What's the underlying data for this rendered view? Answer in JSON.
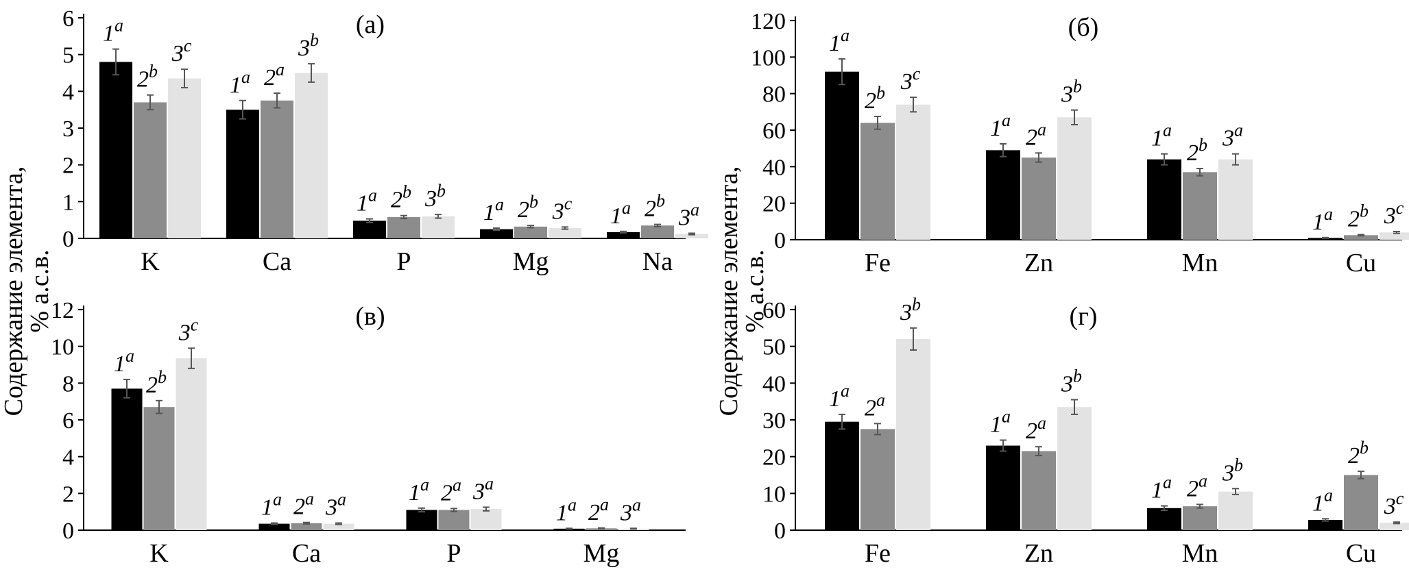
{
  "y_axis_label_line1": "Содержание элемента,",
  "y_axis_label_line2": "% а.с.в.",
  "colors": {
    "series1": "#000000",
    "series2": "#8c8c8c",
    "series3": "#e3e3e3",
    "axis": "#000000",
    "errorbar": "#555555"
  },
  "chart_data": [
    {
      "type": "bar",
      "panel_label": "(а)",
      "categories": [
        "K",
        "Ca",
        "P",
        "Mg",
        "Na"
      ],
      "ylim": [
        0,
        6
      ],
      "yticks": [
        0,
        1,
        2,
        3,
        4,
        5,
        6
      ],
      "series": [
        {
          "values": [
            4.8,
            3.5,
            0.48,
            0.25,
            0.17
          ],
          "errors": [
            0.35,
            0.25,
            0.05,
            0.03,
            0.02
          ],
          "labels": [
            "1",
            "1",
            "1",
            "1",
            "1"
          ],
          "letters": [
            "a",
            "a",
            "a",
            "a",
            "a"
          ]
        },
        {
          "values": [
            3.7,
            3.75,
            0.58,
            0.32,
            0.35
          ],
          "errors": [
            0.2,
            0.2,
            0.04,
            0.03,
            0.03
          ],
          "labels": [
            "2",
            "2",
            "2",
            "2",
            "2"
          ],
          "letters": [
            "b",
            "a",
            "b",
            "b",
            "b"
          ]
        },
        {
          "values": [
            4.35,
            4.5,
            0.6,
            0.28,
            0.12
          ],
          "errors": [
            0.25,
            0.25,
            0.05,
            0.03,
            0.02
          ],
          "labels": [
            "3",
            "3",
            "3",
            "3",
            "3"
          ],
          "letters": [
            "c",
            "b",
            "b",
            "c",
            "a"
          ]
        }
      ]
    },
    {
      "type": "bar",
      "panel_label": "(б)",
      "categories": [
        "Fe",
        "Zn",
        "Mn",
        "Cu"
      ],
      "ylim": [
        0,
        120
      ],
      "yticks": [
        0,
        20,
        40,
        60,
        80,
        100,
        120
      ],
      "series": [
        {
          "values": [
            92,
            49,
            44,
            1
          ],
          "errors": [
            7,
            3.5,
            3,
            0.2
          ],
          "labels": [
            "1",
            "1",
            "1",
            "1"
          ],
          "letters": [
            "a",
            "a",
            "a",
            "a"
          ]
        },
        {
          "values": [
            64,
            45,
            37,
            2.5
          ],
          "errors": [
            3.5,
            2.5,
            2,
            0.3
          ],
          "labels": [
            "2",
            "2",
            "2",
            "2"
          ],
          "letters": [
            "b",
            "a",
            "b",
            "b"
          ]
        },
        {
          "values": [
            74,
            67,
            44,
            4
          ],
          "errors": [
            4,
            4,
            3,
            0.5
          ],
          "labels": [
            "3",
            "3",
            "3",
            "3"
          ],
          "letters": [
            "c",
            "b",
            "a",
            "c"
          ]
        }
      ]
    },
    {
      "type": "bar",
      "panel_label": "(в)",
      "categories": [
        "K",
        "Ca",
        "P",
        "Mg"
      ],
      "ylim": [
        0,
        12
      ],
      "yticks": [
        0,
        2,
        4,
        6,
        8,
        10,
        12
      ],
      "series": [
        {
          "values": [
            7.7,
            0.35,
            1.1,
            0.08
          ],
          "errors": [
            0.5,
            0.04,
            0.1,
            0.02
          ],
          "labels": [
            "1",
            "1",
            "1",
            "1"
          ],
          "letters": [
            "a",
            "a",
            "a",
            "a"
          ]
        },
        {
          "values": [
            6.7,
            0.38,
            1.1,
            0.1
          ],
          "errors": [
            0.35,
            0.04,
            0.08,
            0.02
          ],
          "labels": [
            "2",
            "2",
            "2",
            "2"
          ],
          "letters": [
            "b",
            "a",
            "a",
            "a"
          ]
        },
        {
          "values": [
            9.35,
            0.35,
            1.15,
            0.08
          ],
          "errors": [
            0.55,
            0.04,
            0.1,
            0.02
          ],
          "labels": [
            "3",
            "3",
            "3",
            "3"
          ],
          "letters": [
            "c",
            "a",
            "a",
            "a"
          ]
        }
      ]
    },
    {
      "type": "bar",
      "panel_label": "(г)",
      "categories": [
        "Fe",
        "Zn",
        "Mn",
        "Cu"
      ],
      "ylim": [
        0,
        60
      ],
      "yticks": [
        0,
        10,
        20,
        30,
        40,
        50,
        60
      ],
      "series": [
        {
          "values": [
            29.5,
            23,
            6,
            2.8
          ],
          "errors": [
            2,
            1.5,
            0.6,
            0.3
          ],
          "labels": [
            "1",
            "1",
            "1",
            "1"
          ],
          "letters": [
            "a",
            "a",
            "a",
            "a"
          ]
        },
        {
          "values": [
            27.5,
            21.5,
            6.5,
            15
          ],
          "errors": [
            1.5,
            1.2,
            0.5,
            1
          ],
          "labels": [
            "2",
            "2",
            "2",
            "2"
          ],
          "letters": [
            "a",
            "a",
            "a",
            "b"
          ]
        },
        {
          "values": [
            52,
            33.5,
            10.5,
            2
          ],
          "errors": [
            3,
            2,
            0.8,
            0.2
          ],
          "labels": [
            "3",
            "3",
            "3",
            "3"
          ],
          "letters": [
            "b",
            "b",
            "b",
            "c"
          ]
        }
      ]
    }
  ]
}
